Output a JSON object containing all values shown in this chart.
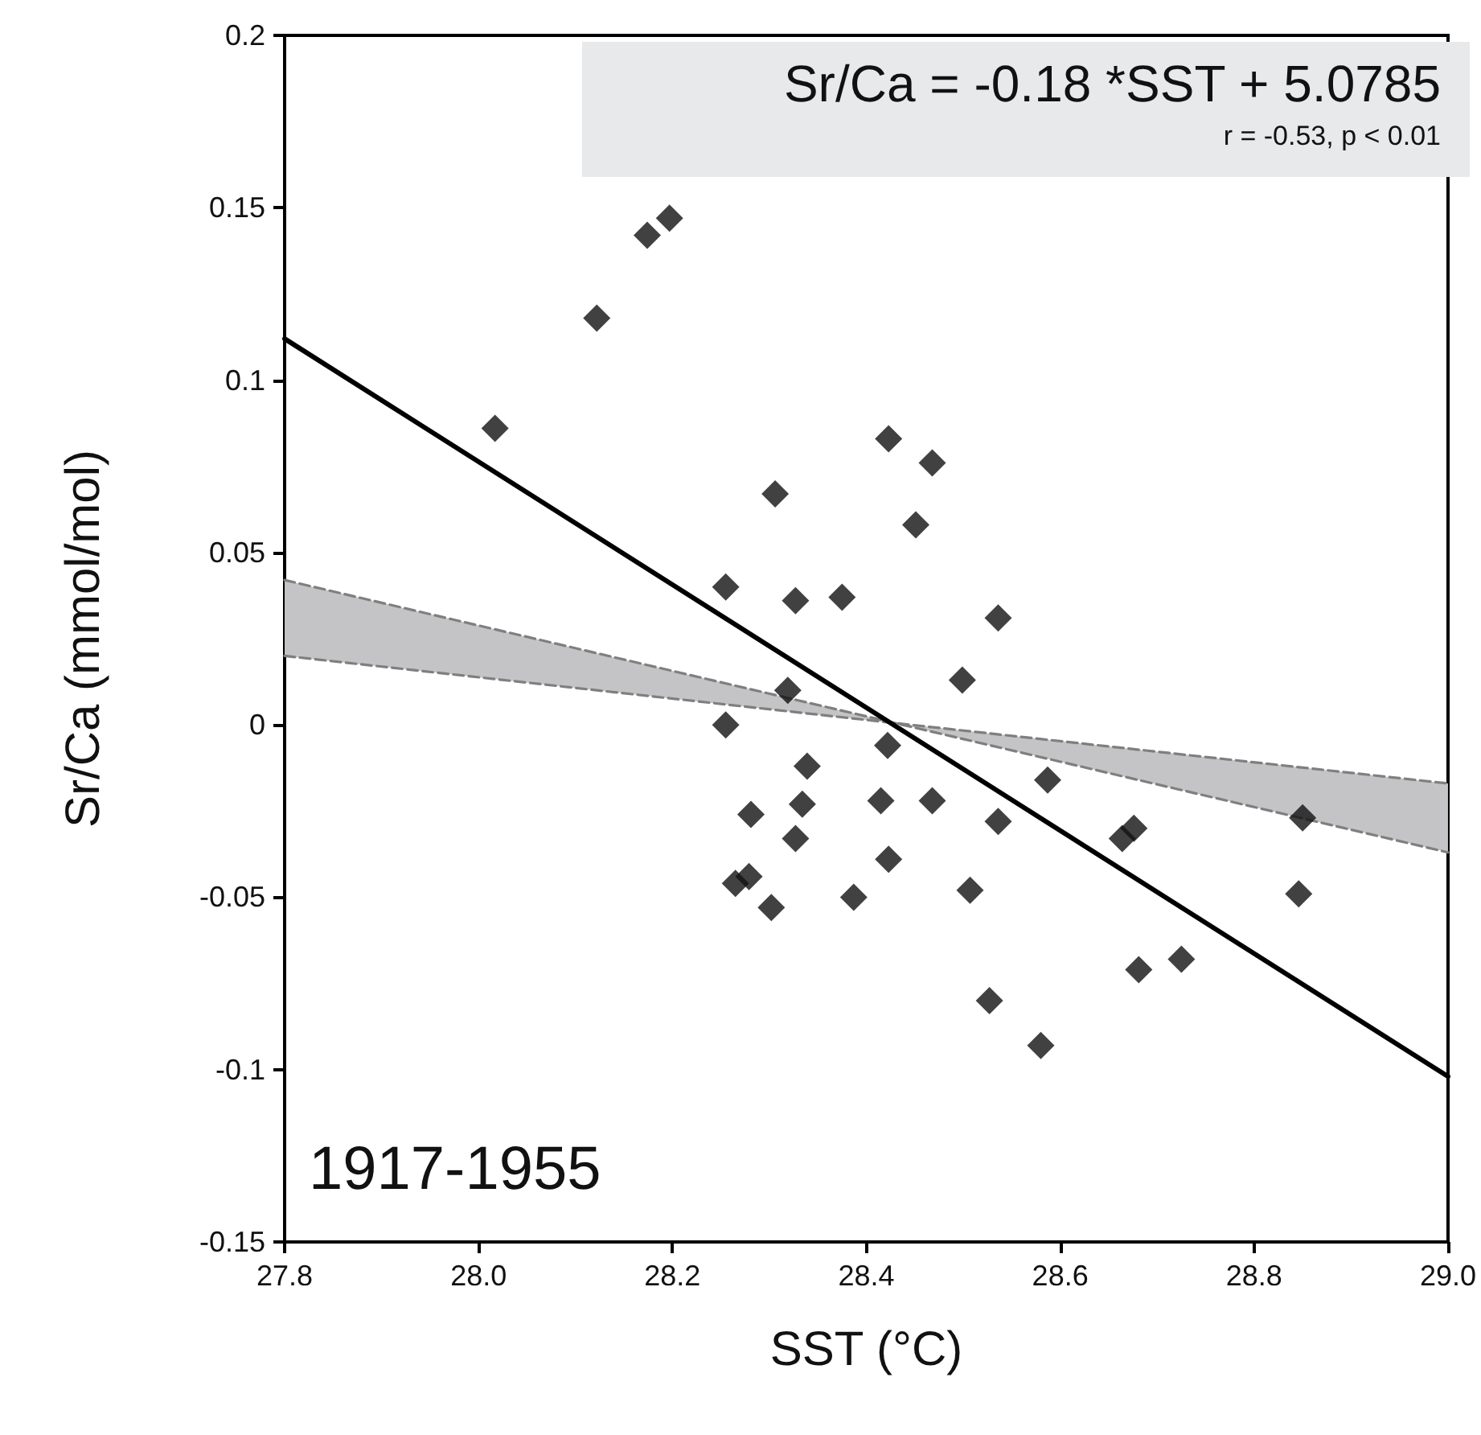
{
  "chart_data": {
    "type": "scatter",
    "xlabel": "SST (°C)",
    "ylabel": "Sr/Ca (mmol/mol)",
    "xlim": [
      27.8,
      29.0
    ],
    "xticks": [
      27.8,
      {
        "value": 28,
        "label": "28.0"
      },
      28.2,
      28.4,
      28.6,
      28.8,
      {
        "value": 29,
        "label": "29.0"
      }
    ],
    "ylim": [
      -0.15,
      0.2
    ],
    "yticks": [
      -0.15,
      -0.1,
      -0.05,
      0,
      0.05,
      0.1,
      0.15,
      0.2
    ],
    "grid": false,
    "annotations": [
      "Sr/Ca  = -0.18 *SST + 5.0785",
      "r = -0.53, p < 0.01",
      "1917-1955"
    ],
    "series": [
      {
        "type": "line",
        "color": "#c4c4c6",
        "x": [
          27.8,
          28.43,
          29.0
        ],
        "values": [
          null,
          null,
          null
        ],
        "lower": [
          0.02,
          0.0005,
          -0.037
        ],
        "upper": [
          0.042,
          0.0005,
          -0.017
        ]
      },
      {
        "type": "line",
        "color": "#7f7f7f",
        "marker": "none",
        "line_style": "dashed",
        "x": [
          27.8,
          28.43,
          29.0
        ],
        "values": [
          0.042,
          0.0005,
          -0.037
        ]
      },
      {
        "type": "line",
        "color": "#7f7f7f",
        "marker": "none",
        "line_style": "dashed",
        "x": [
          27.8,
          28.43,
          29.0
        ],
        "values": [
          0.02,
          0.0005,
          -0.017
        ]
      },
      {
        "type": "line",
        "color": "#000000",
        "marker": "none",
        "line_style": "solid",
        "x": [
          27.8,
          29.0
        ],
        "values": [
          0.112,
          -0.102
        ]
      },
      {
        "color": "#111111",
        "marker": "diamond",
        "x": [
          28.017,
          28.122,
          28.174,
          28.197,
          28.306,
          28.423,
          28.468,
          28.451,
          28.255,
          28.327,
          28.375,
          28.536,
          28.499,
          28.319,
          28.255,
          28.422,
          28.339,
          28.587,
          28.281,
          28.334,
          28.415,
          28.468,
          28.536,
          28.327,
          28.423,
          28.265,
          28.279,
          28.507,
          28.302,
          28.387,
          28.527,
          28.58,
          28.664,
          28.676,
          28.85,
          28.846,
          28.725,
          28.681
        ],
        "values": [
          0.086,
          0.118,
          0.142,
          0.147,
          0.067,
          0.083,
          0.076,
          0.058,
          0.04,
          0.036,
          0.037,
          0.031,
          0.013,
          0.01,
          0,
          -0.006,
          -0.012,
          -0.016,
          -0.026,
          -0.023,
          -0.022,
          -0.022,
          -0.028,
          -0.033,
          -0.039,
          -0.046,
          -0.044,
          -0.048,
          -0.053,
          -0.05,
          -0.08,
          -0.093,
          -0.033,
          -0.03,
          -0.027,
          -0.049,
          -0.068,
          -0.071
        ]
      }
    ]
  }
}
